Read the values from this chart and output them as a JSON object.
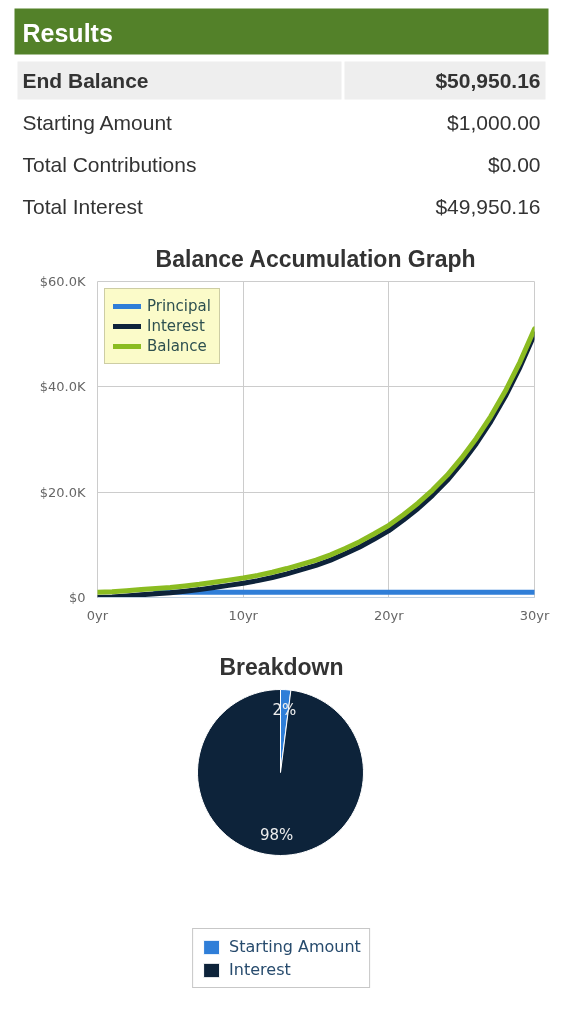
{
  "chart_data": [
    {
      "type": "other",
      "title": "Results",
      "annotations": [
        "End Balance",
        "$50,950.16",
        "Starting Amount",
        "$1,000.00",
        "Total Contributions",
        "$0.00",
        "Total Interest",
        "$49,950.16"
      ]
    },
    {
      "type": "line",
      "title": "Balance Accumulation Graph",
      "x": [
        0,
        1,
        2,
        3,
        4,
        5,
        6,
        7,
        8,
        9,
        10,
        11,
        12,
        13,
        14,
        15,
        16,
        17,
        18,
        19,
        20,
        21,
        22,
        23,
        24,
        25,
        26,
        27,
        28,
        29,
        30
      ],
      "series": [
        {
          "name": "Principal",
          "color": "#2f7ed8",
          "values": [
            null,
            null,
            null,
            null,
            1000,
            1000,
            1000,
            1000,
            1000,
            1000,
            1000,
            1000,
            1000,
            1000,
            1000,
            1000,
            1000,
            1000,
            1000,
            1000,
            1000,
            1000,
            1000,
            1000,
            1000,
            1000,
            1000,
            1000,
            1000,
            1000,
            1000
          ]
        },
        {
          "name": "Interest",
          "color": "#0d233a",
          "values": [
            0,
            100,
            300,
            500,
            700,
            900,
            1200,
            1500,
            1900,
            2300,
            2700,
            3200,
            3800,
            4500,
            5300,
            6100,
            7100,
            8300,
            9600,
            11100,
            12700,
            14700,
            16900,
            19400,
            22200,
            25500,
            29200,
            33400,
            38200,
            43700,
            50000
          ]
        },
        {
          "name": "Balance",
          "color": "#8bbc21",
          "values": [
            1000,
            1100,
            1300,
            1500,
            1700,
            1900,
            2200,
            2500,
            2900,
            3300,
            3700,
            4200,
            4800,
            5500,
            6300,
            7100,
            8100,
            9300,
            10600,
            12100,
            13700,
            15700,
            17900,
            20400,
            23200,
            26500,
            30200,
            34400,
            39200,
            44700,
            51000
          ]
        }
      ],
      "xlim": [
        0,
        30
      ],
      "ylim": [
        0,
        60000
      ],
      "xticks": [
        {
          "value": 0,
          "label": "0yr"
        },
        {
          "value": 10,
          "label": "10yr"
        },
        {
          "value": 20,
          "label": "20yr"
        },
        {
          "value": 30,
          "label": "30yr"
        }
      ],
      "yticks": [
        {
          "value": 0,
          "label": "$0"
        },
        {
          "value": 20000,
          "label": "$20.0K"
        },
        {
          "value": 40000,
          "label": "$40.0K"
        },
        {
          "value": 60000,
          "label": "$60.0K"
        }
      ],
      "grid": true,
      "legend": "top left",
      "marker": "none",
      "line_style": "solid"
    },
    {
      "type": "pie",
      "title": "Breakdown",
      "categories": [
        "Starting Amount",
        "Interest"
      ],
      "values": [
        2,
        98
      ],
      "colors": [
        "#2f7ed8",
        "#0d233a"
      ],
      "value_labels": [
        "2%",
        "98%"
      ],
      "legend": "bottom"
    }
  ]
}
